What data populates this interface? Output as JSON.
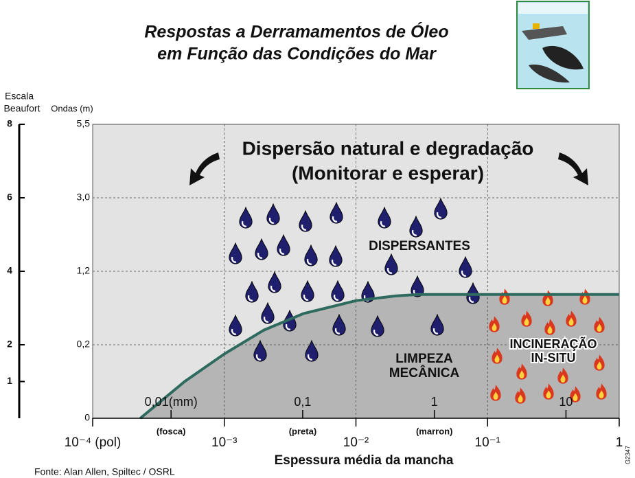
{
  "chart_data": {
    "type": "region",
    "title": [
      "Respostas a Derramamentos de Óleo",
      "em Função das Condições do Mar"
    ],
    "beaufort_label": [
      "Escala",
      "Beaufort"
    ],
    "wave_label": "Ondas (m)",
    "xlabel": "Espessura média da mancha",
    "source": "Fonte: Alan Allen, Spiltec / OSRL",
    "code": "G2347",
    "log_x": true,
    "grid": true,
    "xlim": [
      0.0001,
      1
    ],
    "ylim": [
      0,
      8
    ],
    "xticks": [
      {
        "value": 0.0001,
        "label": "10⁻⁴ (pol)"
      },
      {
        "value": 0.001,
        "label": "10⁻³"
      },
      {
        "value": 0.01,
        "label": "10⁻²"
      },
      {
        "value": 0.1,
        "label": "10⁻¹"
      },
      1
    ],
    "mm_ticks": [
      {
        "value": 0.000394,
        "label": "0,01(mm)"
      },
      {
        "value": 0.00394,
        "label": "0,1"
      },
      {
        "value": 0.0394,
        "label": "1"
      },
      {
        "value": 0.394,
        "label": "10"
      }
    ],
    "appearance_labels": [
      {
        "value": 0.000394,
        "label": "(fosca)"
      },
      {
        "value": 0.00394,
        "label": "(preta)"
      },
      {
        "value": 0.0394,
        "label": "(marron)"
      }
    ],
    "yticks": [
      1,
      2,
      4,
      6,
      8
    ],
    "wave_ticks": [
      0,
      {
        "value": 2,
        "label": "0,2"
      },
      {
        "value": 4,
        "label": "1,2"
      },
      {
        "value": 6,
        "label": "3,0"
      },
      {
        "value": 8,
        "label": "5,5"
      }
    ],
    "boundary": {
      "color": "#2e6b5e",
      "x": [
        0.00023,
        0.0005,
        0.001,
        0.002,
        0.004,
        0.01,
        0.02,
        0.03,
        0.1,
        1
      ],
      "y": [
        0,
        1.0,
        1.75,
        2.4,
        2.85,
        3.2,
        3.33,
        3.37,
        3.37,
        3.37
      ]
    },
    "annotations": {
      "natural": [
        "Dispersão natural e degradação",
        "(Monitorar e esperar)"
      ],
      "dispersants": "DISPERSANTES",
      "mechanical": [
        "LIMPEZA",
        "MECÂNICA"
      ],
      "burning": [
        "INCINERAÇÃO",
        "IN-SITU"
      ]
    }
  }
}
